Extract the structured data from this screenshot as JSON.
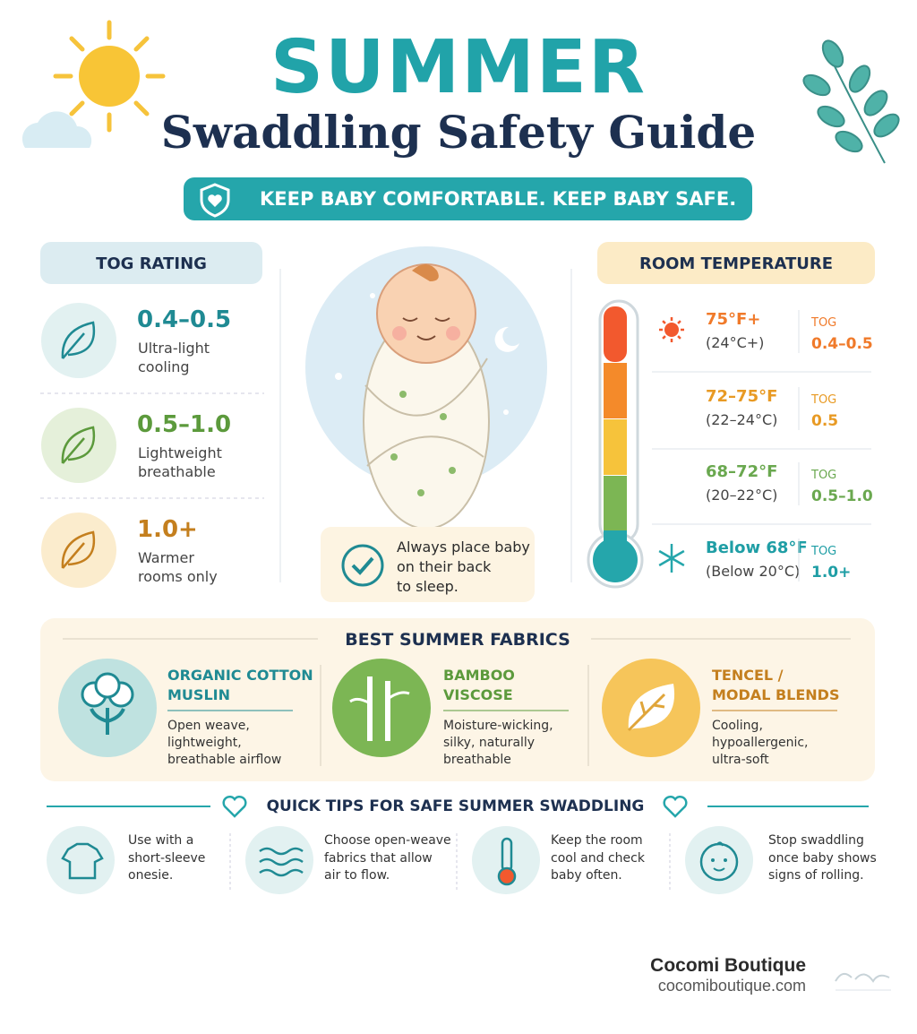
{
  "header": {
    "title": "SUMMER",
    "subtitle": "Swaddling Safety Guide",
    "banner": "KEEP BABY COMFORTABLE. KEEP BABY SAFE."
  },
  "tog_rating": {
    "heading": "TOG RATING",
    "items": [
      {
        "value": "0.4–0.5",
        "description": [
          "Ultra-light",
          "cooling"
        ]
      },
      {
        "value": "0.5–1.0",
        "description": [
          "Lightweight",
          "breathable"
        ]
      },
      {
        "value": "1.0+",
        "description": [
          "Warmer",
          "rooms only"
        ]
      }
    ]
  },
  "safety_note": [
    "Always place baby",
    "on their back",
    "to sleep."
  ],
  "room_temperature": {
    "heading": "ROOM TEMPERATURE",
    "rows": [
      {
        "fahrenheit": "75°F+",
        "celsius": "(24°C+)",
        "tog_label": "TOG",
        "tog": "0.4–0.5"
      },
      {
        "fahrenheit": "72–75°F",
        "celsius": "(22–24°C)",
        "tog_label": "TOG",
        "tog": "0.5"
      },
      {
        "fahrenheit": "68–72°F",
        "celsius": "(20–22°C)",
        "tog_label": "TOG",
        "tog": "0.5–1.0"
      },
      {
        "fahrenheit": "Below 68°F",
        "celsius": "(Below 20°C)",
        "tog_label": "TOG",
        "tog": "1.0+"
      }
    ]
  },
  "fabrics": {
    "heading": "BEST SUMMER FABRICS",
    "items": [
      {
        "name": [
          "ORGANIC COTTON",
          "MUSLIN"
        ],
        "description": [
          "Open weave,",
          "lightweight,",
          "breathable airflow"
        ]
      },
      {
        "name": [
          "BAMBOO",
          "VISCOSE"
        ],
        "description": [
          "Moisture-wicking,",
          "silky, naturally",
          "breathable"
        ]
      },
      {
        "name": [
          "TENCEL /",
          "MODAL BLENDS"
        ],
        "description": [
          "Cooling,",
          "hypoallergenic,",
          "ultra-soft"
        ]
      }
    ]
  },
  "quick_tips": {
    "heading": "QUICK TIPS FOR SAFE SUMMER SWADDLING",
    "items": [
      [
        "Use with a",
        "short-sleeve",
        "onesie."
      ],
      [
        "Choose open-weave",
        "fabrics that allow",
        "air to flow."
      ],
      [
        "Keep the room",
        "cool and check",
        "baby often."
      ],
      [
        "Stop swaddling",
        "once baby shows",
        "signs of rolling."
      ]
    ]
  },
  "footer": {
    "brand": "Cocomi Boutique",
    "url": "cocomiboutique.com"
  }
}
